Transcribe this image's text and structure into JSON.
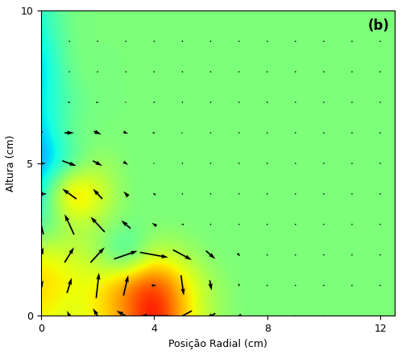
{
  "chart_data": {
    "type": "quiver",
    "annotation": "(b)",
    "x_label": "Posição Radial (cm)",
    "y_label": "Altura (cm)",
    "xlim": [
      0,
      12.5
    ],
    "xticks": [
      0,
      4,
      8,
      12
    ],
    "ylim": [
      0,
      10
    ],
    "yticks": [
      0,
      5,
      10
    ],
    "x": [
      0,
      1,
      2,
      3,
      4,
      5,
      6,
      7,
      8,
      9,
      10,
      11,
      12
    ],
    "y": [
      0,
      1,
      2,
      3,
      4,
      5,
      6,
      7,
      8,
      9,
      10
    ],
    "u": [
      [
        0,
        -0.5,
        -1,
        -2,
        -3,
        -2,
        -1,
        -0.5,
        0,
        0,
        0,
        0,
        0
      ],
      [
        0.5,
        0.5,
        0.3,
        0.5,
        0.5,
        0.3,
        0.2,
        0,
        0,
        0,
        0,
        0,
        0
      ],
      [
        0.5,
        1,
        1.5,
        2.5,
        3,
        2,
        1,
        0.3,
        0,
        0,
        0,
        0,
        0
      ],
      [
        -0.5,
        -1,
        -1.5,
        -1,
        -0.5,
        -0.3,
        0,
        0,
        0,
        0,
        0,
        0,
        0
      ],
      [
        -1,
        -1.5,
        -1,
        -0.5,
        -0.3,
        0,
        0,
        0,
        0,
        0,
        0,
        0,
        0
      ],
      [
        1,
        1.5,
        1,
        0.5,
        0.2,
        0,
        0,
        0,
        0,
        0,
        0,
        0,
        0
      ],
      [
        0.5,
        1,
        0.8,
        0.5,
        0.3,
        0.2,
        0,
        0,
        0,
        0,
        0,
        0,
        0
      ],
      [
        0.3,
        0.3,
        0.3,
        0.2,
        0.1,
        0,
        0,
        0,
        0,
        0,
        0,
        0,
        0
      ],
      [
        0,
        0,
        0,
        0,
        0,
        0,
        0,
        0,
        0,
        0,
        0,
        0,
        0
      ],
      [
        0,
        0,
        0,
        0,
        0,
        0,
        0,
        0,
        0,
        0,
        0,
        0,
        0
      ],
      [
        0,
        0,
        0,
        0,
        0,
        0,
        0,
        0,
        0,
        0,
        0,
        0,
        0
      ]
    ],
    "v": [
      [
        0.5,
        1,
        1.5,
        1,
        0,
        -1,
        -0.5,
        -0.2,
        0,
        0,
        0,
        0,
        0
      ],
      [
        1,
        1.5,
        2.5,
        2,
        0,
        -2,
        -1,
        -0.3,
        0,
        0,
        0,
        0,
        0
      ],
      [
        1.5,
        1.5,
        1.5,
        0.8,
        -0.5,
        -1,
        -0.8,
        -0.3,
        0,
        0,
        0,
        0,
        0
      ],
      [
        2,
        2,
        1.5,
        0.8,
        0.3,
        0,
        0,
        0,
        0,
        0,
        0,
        0,
        0
      ],
      [
        0,
        1,
        1,
        0.5,
        0.2,
        0,
        0,
        0,
        0,
        0,
        0,
        0,
        0
      ],
      [
        0,
        -0.5,
        -0.5,
        -0.3,
        0,
        0,
        0,
        0,
        0,
        0,
        0,
        0,
        0
      ],
      [
        0.3,
        0,
        -0.3,
        -0.2,
        0,
        0,
        0,
        0,
        0,
        0,
        0,
        0,
        0
      ],
      [
        0,
        0,
        0,
        0,
        0,
        0,
        0,
        0,
        0,
        0,
        0,
        0,
        0
      ],
      [
        0,
        0,
        0,
        0,
        0,
        0,
        0,
        0,
        0,
        0,
        0,
        0,
        0
      ],
      [
        0,
        0,
        0,
        0,
        0,
        0,
        0,
        0,
        0,
        0,
        0,
        0,
        0
      ],
      [
        0,
        0,
        0,
        0,
        0,
        0,
        0,
        0,
        0,
        0,
        0,
        0,
        0
      ]
    ],
    "vorticity": [
      [
        0.3,
        0.2,
        0.3,
        0.5,
        0.9,
        0.4,
        0.1,
        0,
        0,
        0,
        0,
        0,
        0
      ],
      [
        0.4,
        0.3,
        0.3,
        0.6,
        0.8,
        0.4,
        0.1,
        0,
        0,
        0,
        0,
        0,
        0
      ],
      [
        0.3,
        0.2,
        0.1,
        -0.3,
        0.2,
        0.1,
        0,
        0,
        0,
        0,
        0,
        0,
        0
      ],
      [
        -0.2,
        0.1,
        0.1,
        0,
        0,
        0,
        0,
        0,
        0,
        0,
        0,
        0,
        0
      ],
      [
        -0.3,
        0.6,
        0.3,
        0,
        0,
        0,
        0,
        0,
        0,
        0,
        0,
        0,
        0
      ],
      [
        -0.5,
        -0.2,
        0.1,
        0,
        0,
        0,
        0,
        0,
        0,
        0,
        0,
        0,
        0
      ],
      [
        -0.4,
        0,
        0,
        0,
        0,
        0,
        0,
        0,
        0,
        0,
        0,
        0,
        0
      ],
      [
        -0.3,
        -0.1,
        0,
        0,
        0,
        0,
        0,
        0,
        0,
        0,
        0,
        0,
        0
      ],
      [
        -0.4,
        0,
        0,
        0,
        0,
        0,
        0,
        0,
        0,
        0,
        0,
        0,
        0
      ],
      [
        -0.3,
        0,
        0,
        0,
        0,
        0,
        0,
        0,
        0,
        0,
        0,
        0,
        0
      ],
      [
        -0.2,
        0,
        0,
        0,
        0,
        0,
        0,
        0,
        0,
        0,
        0,
        0,
        0
      ]
    ],
    "vorticity_range": [
      -1,
      1
    ]
  }
}
